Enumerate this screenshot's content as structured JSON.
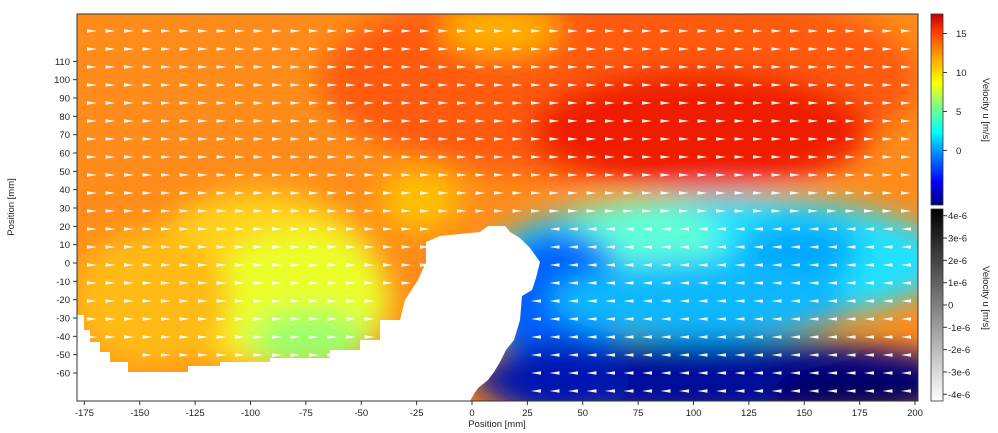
{
  "chart_data": {
    "type": "heatmap",
    "title": "",
    "xlabel": "Position [mm]",
    "ylabel": "Position [mm]",
    "xlim": [
      -180,
      200
    ],
    "ylim": [
      -62,
      111
    ],
    "x_ticks": [
      -175,
      -150,
      -125,
      -100,
      -75,
      -50,
      -25,
      0,
      25,
      50,
      75,
      100,
      125,
      150,
      175,
      200
    ],
    "y_ticks": [
      110,
      100,
      90,
      80,
      70,
      60,
      50,
      40,
      30,
      20,
      10,
      0,
      -10,
      -20,
      -30,
      -40,
      -50,
      -60
    ],
    "colorbars": [
      {
        "label": "Velocity u [m/s]",
        "colormap": "jet",
        "range": [
          -7,
          17.5
        ],
        "tick_values": [
          15,
          10,
          5,
          0
        ],
        "tick_labels": [
          "15",
          "10",
          "5",
          "0"
        ]
      },
      {
        "label": "Velocity u [m/s]",
        "colormap": "gray",
        "range": [
          -4.3e-06,
          4.3e-06
        ],
        "tick_values": [
          4e-06,
          3e-06,
          2e-06,
          1e-06,
          0,
          -1e-06,
          -2e-06,
          -3e-06,
          -4e-06
        ],
        "tick_labels": [
          "4e-6",
          "3e-6",
          "2e-6",
          "1e-6",
          "0",
          "-1e-6",
          "-2e-6",
          "-3e-6",
          "-4e-6"
        ]
      }
    ],
    "field_description": "Velocity field u: ~10-13 m/s on left side, increasing to ~16-17 m/s upper right; recirculation region (negative u, blue/cyan) behind obstacle near x=0..30 mm below y~20 mm; vectors pointing right in free stream, left in recirculation zone.",
    "masked_region": "white area (no data) around obstacle and lower-left boundary",
    "vector_overlay": true,
    "grid": false
  }
}
